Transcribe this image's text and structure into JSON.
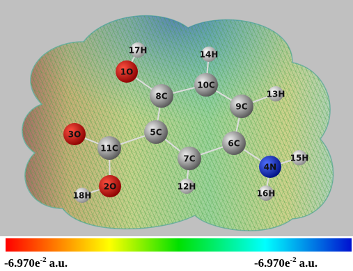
{
  "atoms": [
    {
      "label": "17H"
    },
    {
      "label": "1O"
    },
    {
      "label": "14H"
    },
    {
      "label": "10C"
    },
    {
      "label": "8C"
    },
    {
      "label": "9C"
    },
    {
      "label": "13H"
    },
    {
      "label": "3O"
    },
    {
      "label": "11C"
    },
    {
      "label": "5C"
    },
    {
      "label": "6C"
    },
    {
      "label": "15H"
    },
    {
      "label": "4N"
    },
    {
      "label": "7C"
    },
    {
      "label": "12H"
    },
    {
      "label": "2O"
    },
    {
      "label": "16H"
    },
    {
      "label": "18H"
    }
  ],
  "scale": {
    "min": {
      "mantissa": "-6.970e",
      "exponent": "-2",
      "unit": "a.u."
    },
    "max": {
      "mantissa": "-6.970e",
      "exponent": "-2",
      "unit": "a.u."
    }
  }
}
